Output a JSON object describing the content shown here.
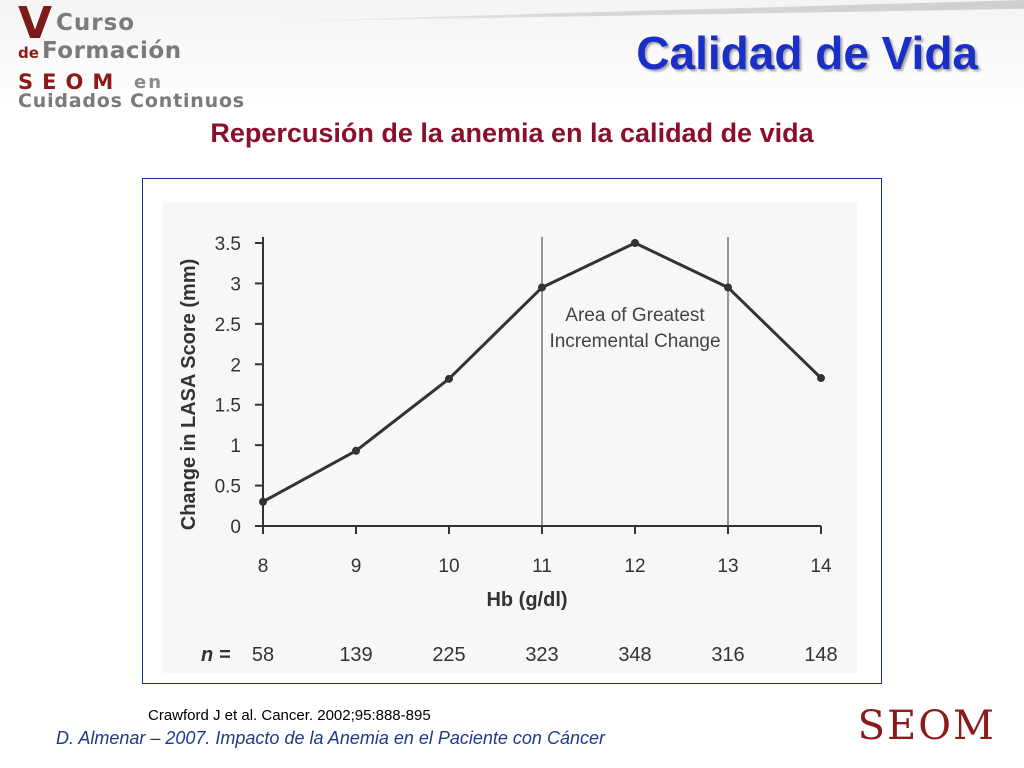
{
  "header": {
    "logo": {
      "line1_v": "V",
      "line1": "Curso",
      "line2_de": "de",
      "line2": "Formación",
      "line3": "SEOM",
      "line3_en": "en",
      "line4": "Cuidados Continuos"
    },
    "title": "Calidad de Vida",
    "subtitle": "Repercusión de la anemia en la calidad de vida"
  },
  "colors": {
    "title": "#1a2fc8",
    "subtitle": "#8b0f2a",
    "footer": "#1f3a8a",
    "seom": "#8b1a1a",
    "frame": "#1a2f8a"
  },
  "chart_data": {
    "type": "line",
    "x": [
      8,
      9,
      10,
      11,
      12,
      13,
      14
    ],
    "y": [
      0.3,
      0.93,
      1.82,
      2.95,
      3.5,
      2.95,
      1.83
    ],
    "xlabel": "Hb (g/dl)",
    "ylabel": "Change in LASA Score (mm)",
    "xlim": [
      8,
      14
    ],
    "ylim": [
      0,
      3.5
    ],
    "yticks": [
      0,
      0.5,
      1,
      1.5,
      2,
      2.5,
      3,
      3.5
    ],
    "ytick_labels": [
      "0",
      "0.5",
      "1",
      "1.5",
      "2",
      "2.5",
      "3",
      "3.5"
    ],
    "xtick_labels": [
      "8",
      "9",
      "10",
      "11",
      "12",
      "13",
      "14"
    ],
    "vlines": [
      11,
      13
    ],
    "annotation": {
      "lines": [
        "Area of Greatest",
        "Incremental Change"
      ]
    },
    "n_label": "n =",
    "n_values": [
      "58",
      "139",
      "225",
      "323",
      "348",
      "316",
      "148"
    ],
    "grid": false
  },
  "footer": {
    "citation": "Crawford J et al. Cancer. 2002;95:888-895",
    "author": "D. Almenar – 2007.   Impacto de la Anemia en el Paciente con Cáncer",
    "brand": "SEOM"
  }
}
